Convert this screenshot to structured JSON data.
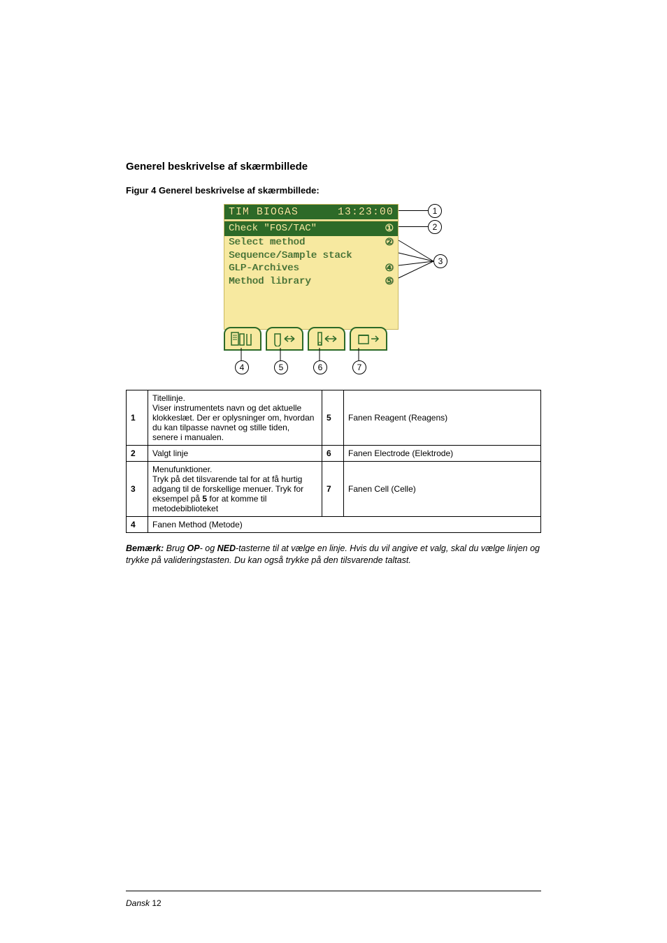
{
  "heading": "Generel beskrivelse af skærmbillede",
  "fig_caption_bold": "Figur 4 Generel beskrivelse af skærmbillede:",
  "lcd": {
    "title": "TIM BIOGAS",
    "time": "13:23:00",
    "selected": "Check \"FOS/TAC\"",
    "lines": [
      {
        "label": "Select method",
        "num": "②"
      },
      {
        "label": "Sequence/Sample stack",
        "num": ""
      },
      {
        "label": "GLP-Archives",
        "num": "④"
      },
      {
        "label": "Method library",
        "num": "⑤"
      }
    ],
    "sel_num": "①"
  },
  "tabs": [
    "method",
    "reagent",
    "electrode",
    "cell"
  ],
  "callouts": {
    "c1": "1",
    "c2": "2",
    "c3": "3",
    "c4": "4",
    "c5": "5",
    "c6": "6",
    "c7": "7"
  },
  "legend": [
    {
      "n": "1",
      "t": "Titellinje.\nViser instrumentets navn og det aktuelle klokkeslæt. Der er oplysninger om, hvordan du kan tilpasse navnet og stille tiden, senere i manualen."
    },
    {
      "n": "2",
      "t": "Valgt linje"
    },
    {
      "n": "3",
      "t": "Menufunktioner.\nTryk på det tilsvarende tal for at få hurtig adgang til de forskellige menuer. Tryk for eksempel på 5 for at komme til metodebiblioteket",
      "boldDigit": "5"
    },
    {
      "n": "4",
      "t": "Fanen Method (Metode)"
    },
    {
      "n": "5",
      "t": "Fanen Reagent (Reagens)"
    },
    {
      "n": "6",
      "t": "Fanen Electrode (Elektrode)"
    },
    {
      "n": "7",
      "t": "Fanen Cell (Celle)"
    }
  ],
  "note_prefix": "Bemærk:",
  "note_body1": " Brug ",
  "note_op": "OP",
  "note_mid": "- og ",
  "note_ned": "NED",
  "note_body2": "-tasterne til at vælge en linje. Hvis du vil angive et valg, skal du vælge linjen og trykke på valideringstasten. Du kan også trykke på den tilsvarende taltast.",
  "footer_lang": "Dansk",
  "footer_page": " 12"
}
